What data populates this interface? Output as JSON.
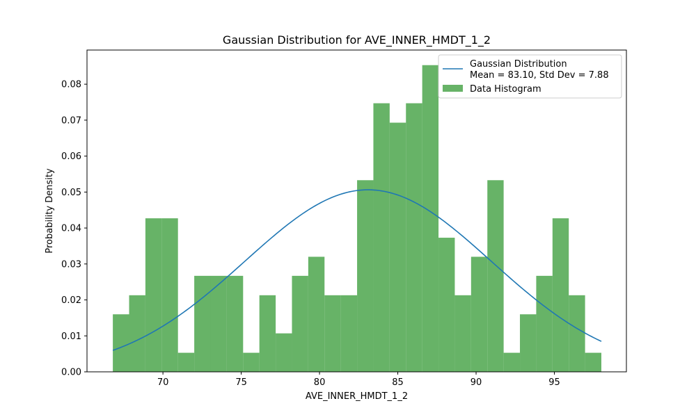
{
  "chart_data": {
    "type": "bar",
    "title": "Gaussian Distribution for AVE_INNER_HMDT_1_2",
    "xlabel": "AVE_INNER_HMDT_1_2",
    "ylabel": "Probability Density",
    "xlim": [
      65.15,
      99.6
    ],
    "ylim": [
      0,
      0.0895
    ],
    "xticks": [
      70,
      75,
      80,
      85,
      90,
      95
    ],
    "yticks": [
      0.0,
      0.01,
      0.02,
      0.03,
      0.04,
      0.05,
      0.06,
      0.07,
      0.08
    ],
    "ytick_labels": [
      "0.00",
      "0.01",
      "0.02",
      "0.03",
      "0.04",
      "0.05",
      "0.06",
      "0.07",
      "0.08"
    ],
    "grid": false,
    "legend_position": "top-right",
    "histogram": {
      "name": "Data Histogram",
      "color": "#4CA64C",
      "bin_edges": [
        66.8,
        67.84,
        68.88,
        69.92,
        70.96,
        72.0,
        73.04,
        74.08,
        75.12,
        76.16,
        77.2,
        78.24,
        79.28,
        80.32,
        81.36,
        82.4,
        83.44,
        84.48,
        85.52,
        86.56,
        87.6,
        88.64,
        89.68,
        90.72,
        91.76,
        92.8,
        93.84,
        94.88,
        95.92,
        96.96,
        98.0
      ],
      "densities": [
        0.016,
        0.0213,
        0.0427,
        0.0427,
        0.0053,
        0.0267,
        0.0267,
        0.0267,
        0.0053,
        0.0213,
        0.0107,
        0.0267,
        0.032,
        0.0213,
        0.0213,
        0.0533,
        0.0747,
        0.0693,
        0.0747,
        0.0853,
        0.0373,
        0.0213,
        0.032,
        0.0533,
        0.0053,
        0.016,
        0.0267,
        0.0427,
        0.0213,
        0.0053
      ]
    },
    "gaussian": {
      "name_line1": "Gaussian Distribution",
      "name_line2": "Mean = 83.10, Std Dev = 7.88",
      "mean": 83.1,
      "std": 7.88,
      "x_range": [
        66.8,
        98.0
      ],
      "color": "#1F77B4"
    }
  }
}
